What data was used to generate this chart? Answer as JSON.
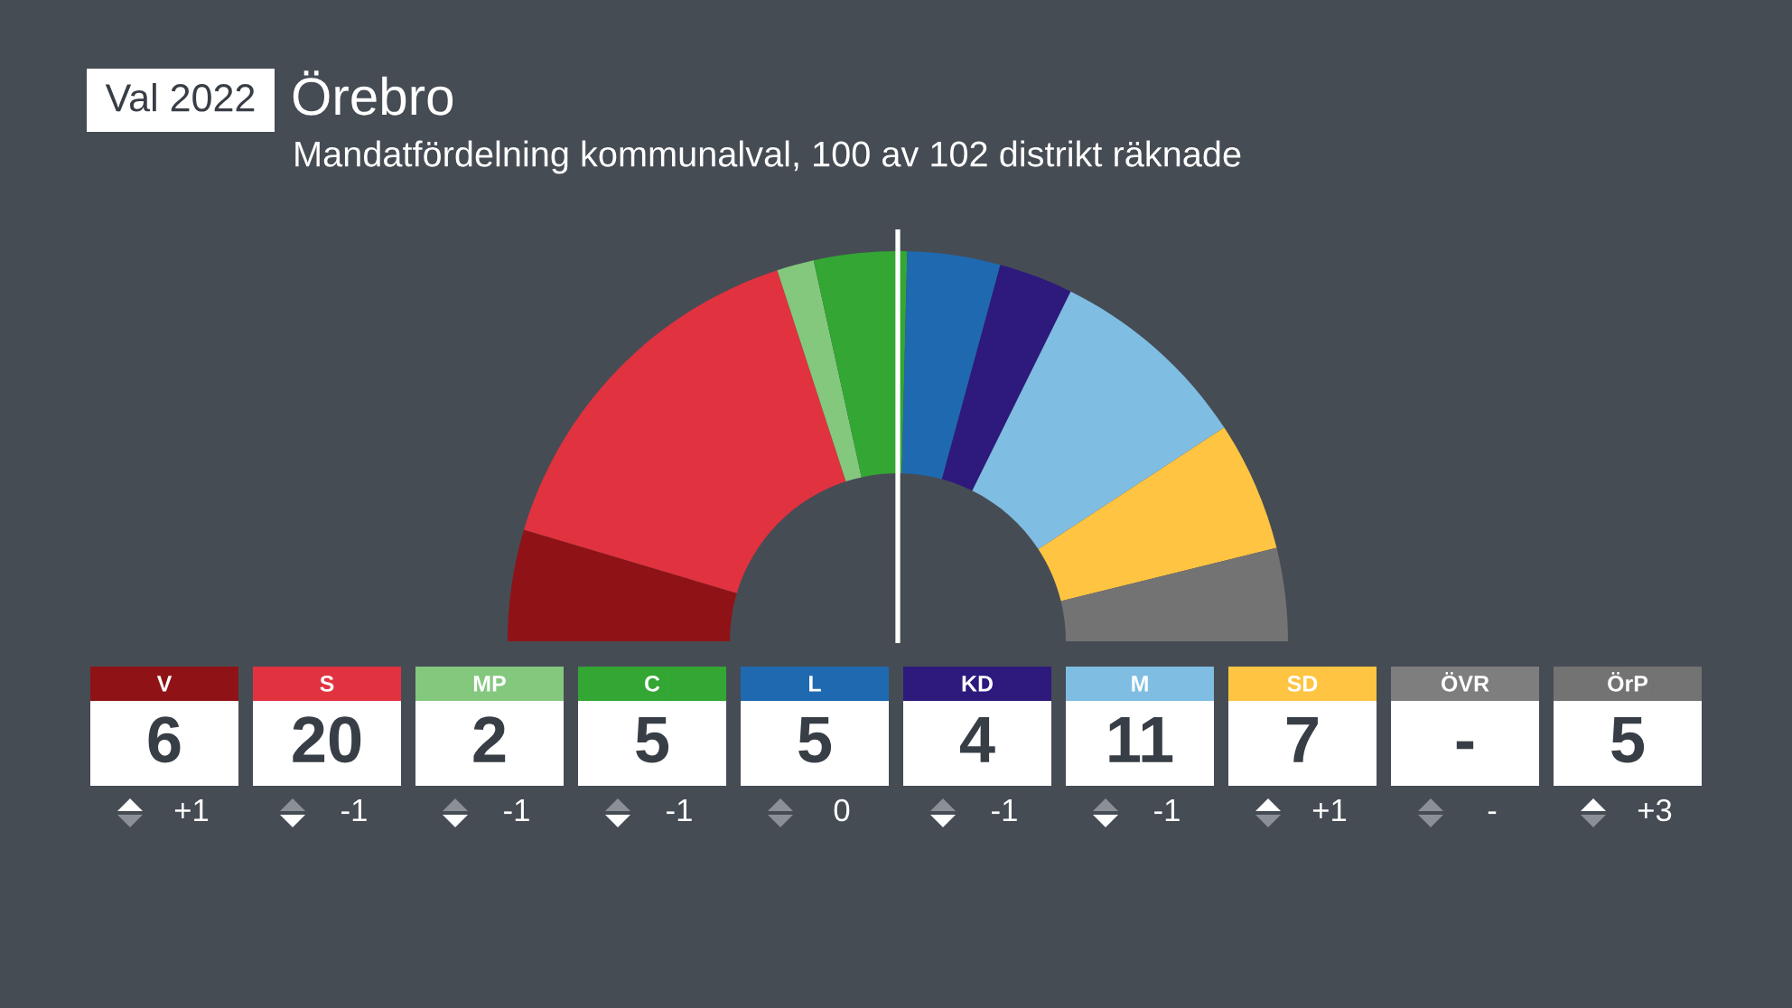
{
  "chart_data": {
    "type": "donut",
    "title": "Örebro",
    "subtitle": "Mandatfördelning kommunalval, 100 av 102 distrikt räknade",
    "categories": [
      "V",
      "S",
      "MP",
      "C",
      "L",
      "KD",
      "M",
      "SD",
      "ÖVR",
      "ÖrP"
    ],
    "values": [
      6,
      20,
      2,
      5,
      5,
      4,
      11,
      7,
      null,
      5
    ],
    "value_labels": [
      "6",
      "20",
      "2",
      "5",
      "5",
      "4",
      "11",
      "7",
      "-",
      "5"
    ],
    "colors": [
      "#8f1316",
      "#e1323f",
      "#84c87e",
      "#33a633",
      "#1f69b1",
      "#2d1a7c",
      "#7fbde2",
      "#fec442",
      "#7e7e7e",
      "#737373"
    ],
    "needle": "C",
    "legend": "bottom",
    "annotations": [
      "Val 2022",
      {
        "text": "+1",
        "x": "V"
      },
      {
        "text": "-1",
        "x": "S"
      },
      {
        "text": "-1",
        "x": "MP"
      },
      {
        "text": "-1",
        "x": "C"
      },
      {
        "text": "0",
        "x": "L"
      },
      {
        "text": "-1",
        "x": "KD"
      },
      {
        "text": "-1",
        "x": "M"
      },
      {
        "text": "+1",
        "x": "SD"
      },
      {
        "text": "-",
        "x": "ÖVR"
      },
      {
        "text": "+3",
        "x": "ÖrP"
      }
    ]
  }
}
